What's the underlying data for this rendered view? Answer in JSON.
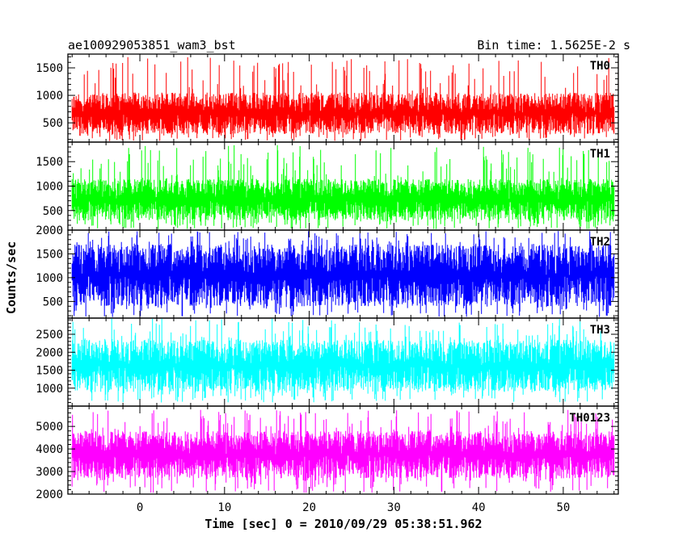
{
  "header": {
    "title": "ae100929053851_wam3_bst",
    "bin_time": "Bin time: 1.5625E-2 s"
  },
  "chart_data": {
    "type": "line",
    "title": "ae100929053851_wam3_bst",
    "subtitle": "Bin time: 1.5625E-2 s",
    "xlabel": "Time [sec] 0 = 2010/09/29 05:38:51.962",
    "ylabel": "Counts/sec",
    "xlim": [
      -8.5,
      56.5
    ],
    "x_data_range": [
      -8,
      56
    ],
    "x_ticks": [
      0,
      10,
      20,
      30,
      40,
      50
    ],
    "x_tick_labels": [
      "0",
      "10",
      "20",
      "30",
      "40",
      "50"
    ],
    "grid": false,
    "panels": [
      {
        "name": "TH0",
        "color": "#ff0000",
        "ylim": [
          150,
          1750
        ],
        "y_ticks": [
          500,
          1000,
          1500
        ],
        "y_tick_labels": [
          "500",
          "1000",
          "1500"
        ],
        "typical_range": [
          300,
          1050
        ],
        "min": 170,
        "max": 1720
      },
      {
        "name": "TH1",
        "color": "#00ff00",
        "ylim": [
          100,
          1900
        ],
        "y_ticks": [
          500,
          1000,
          1500
        ],
        "y_tick_labels": [
          "500",
          "1000",
          "1500"
        ],
        "typical_range": [
          300,
          1150
        ],
        "min": 120,
        "max": 1850
      },
      {
        "name": "TH2",
        "color": "#0000ff",
        "ylim": [
          150,
          2000
        ],
        "y_ticks": [
          500,
          1000,
          1500,
          2000
        ],
        "y_tick_labels": [
          "500",
          "1000",
          "1500",
          "2000"
        ],
        "typical_range": [
          400,
          1700
        ],
        "min": 170,
        "max": 2000
      },
      {
        "name": "TH3",
        "color": "#00ffff",
        "ylim": [
          500,
          2950
        ],
        "y_ticks": [
          1000,
          1500,
          2000,
          2500
        ],
        "y_tick_labels": [
          "1000",
          "1500",
          "2000",
          "2500"
        ],
        "typical_range": [
          900,
          2350
        ],
        "min": 600,
        "max": 2950
      },
      {
        "name": "TH0123",
        "color": "#ff00ff",
        "ylim": [
          2000,
          5900
        ],
        "y_ticks": [
          2000,
          3000,
          4000,
          5000
        ],
        "y_tick_labels": [
          "2000",
          "3000",
          "4000",
          "5000"
        ],
        "typical_range": [
          2700,
          4800
        ],
        "min": 2050,
        "max": 5800
      }
    ]
  }
}
